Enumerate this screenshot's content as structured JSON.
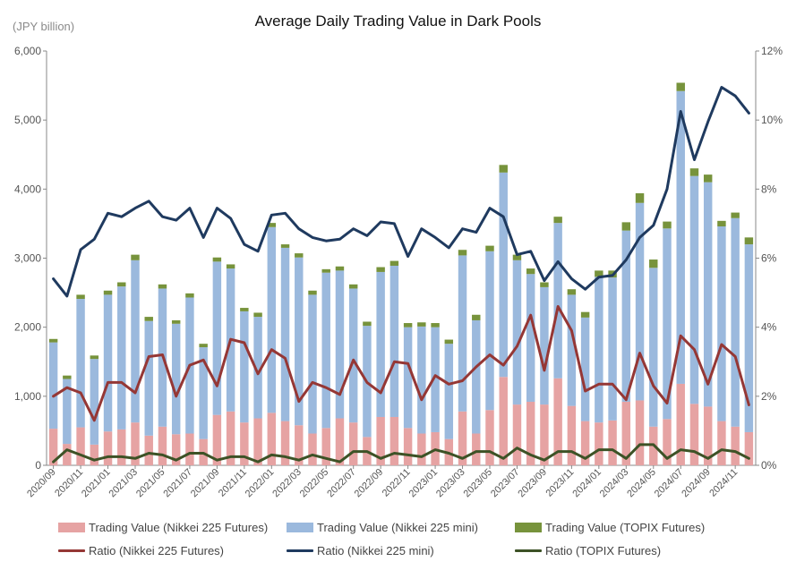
{
  "chart_data": {
    "type": "bar",
    "title": "Average Daily Trading Value in Dark Pools",
    "unit_label": "(JPY billion)",
    "ylim": [
      0,
      6000
    ],
    "y_ticks": [
      "0",
      "1,000",
      "2,000",
      "3,000",
      "4,000",
      "5,000",
      "6,000"
    ],
    "y2lim": [
      0,
      12
    ],
    "y2_ticks": [
      "0%",
      "2%",
      "4%",
      "6%",
      "8%",
      "10%",
      "12%"
    ],
    "stacked": true,
    "categories": [
      "2020/09",
      "2020/10",
      "2020/11",
      "2020/12",
      "2021/01",
      "2021/02",
      "2021/03",
      "2021/04",
      "2021/05",
      "2021/06",
      "2021/07",
      "2021/08",
      "2021/09",
      "2021/10",
      "2021/11",
      "2021/12",
      "2022/01",
      "2022/02",
      "2022/03",
      "2022/04",
      "2022/05",
      "2022/06",
      "2022/07",
      "2022/08",
      "2022/09",
      "2022/10",
      "2022/11",
      "2022/12",
      "2023/01",
      "2023/02",
      "2023/03",
      "2023/04",
      "2023/05",
      "2023/06",
      "2023/07",
      "2023/08",
      "2023/09",
      "2023/10",
      "2023/11",
      "2023/12",
      "2024/01",
      "2024/02",
      "2024/03",
      "2024/04",
      "2024/05",
      "2024/06",
      "2024/07",
      "2024/08",
      "2024/09",
      "2024/10",
      "2024/11",
      "2024/12"
    ],
    "x_tick_labels": [
      "2020/09",
      "2020/11",
      "2021/01",
      "2021/03",
      "2021/05",
      "2021/07",
      "2021/09",
      "2021/11",
      "2022/01",
      "2022/03",
      "2022/05",
      "2022/07",
      "2022/09",
      "2022/11",
      "2023/01",
      "2023/03",
      "2023/05",
      "2023/07",
      "2023/09",
      "2023/11",
      "2024/01",
      "2024/03",
      "2024/05",
      "2024/07",
      "2024/09",
      "2024/11"
    ],
    "series": [
      {
        "name": "Trading Value (Nikkei 225 Futures)",
        "kind": "bar",
        "axis": "left",
        "color": "#e6a3a3",
        "values": [
          530,
          310,
          550,
          300,
          490,
          520,
          620,
          430,
          560,
          450,
          460,
          380,
          730,
          780,
          620,
          680,
          760,
          640,
          580,
          460,
          540,
          680,
          620,
          410,
          700,
          700,
          540,
          460,
          480,
          380,
          780,
          460,
          800,
          1280,
          880,
          920,
          880,
          1260,
          860,
          640,
          620,
          650,
          920,
          940,
          560,
          670,
          1180,
          890,
          850,
          640,
          560,
          480
        ]
      },
      {
        "name": "Trading Value (Nikkei 225 mini)",
        "kind": "bar",
        "axis": "left",
        "color": "#9bb9dd",
        "values": [
          1250,
          940,
          1860,
          1240,
          1980,
          2070,
          2350,
          1660,
          2000,
          1600,
          1970,
          1330,
          2220,
          2070,
          1610,
          1470,
          2690,
          2510,
          2430,
          2010,
          2250,
          2140,
          1940,
          1610,
          2100,
          2190,
          1460,
          1550,
          1520,
          1380,
          2260,
          1640,
          2300,
          2960,
          2090,
          1850,
          1700,
          2250,
          1610,
          1500,
          2110,
          2070,
          2480,
          2860,
          2300,
          2760,
          4240,
          3300,
          3250,
          2820,
          3020,
          2720
        ]
      },
      {
        "name": "Trading Value (TOPIX Futures)",
        "kind": "bar",
        "axis": "left",
        "color": "#77933c",
        "values": [
          50,
          50,
          60,
          50,
          60,
          60,
          80,
          60,
          60,
          50,
          60,
          50,
          60,
          60,
          50,
          60,
          60,
          50,
          60,
          60,
          50,
          60,
          60,
          60,
          70,
          70,
          60,
          60,
          60,
          60,
          80,
          80,
          80,
          110,
          80,
          80,
          70,
          90,
          80,
          80,
          90,
          100,
          120,
          140,
          120,
          100,
          120,
          110,
          110,
          80,
          80,
          100
        ]
      },
      {
        "name": "Ratio (Nikkei 225 Futures)",
        "kind": "line",
        "axis": "right",
        "color": "#953735",
        "values": [
          2.0,
          2.25,
          2.1,
          1.3,
          2.4,
          2.4,
          2.1,
          3.15,
          3.2,
          2.0,
          2.9,
          3.05,
          2.3,
          3.65,
          3.55,
          2.65,
          3.35,
          3.1,
          1.85,
          2.4,
          2.25,
          2.05,
          3.05,
          2.4,
          2.1,
          3.0,
          2.95,
          1.9,
          2.6,
          2.35,
          2.45,
          2.85,
          3.2,
          2.9,
          3.45,
          4.35,
          2.75,
          4.6,
          3.9,
          2.15,
          2.35,
          2.35,
          1.9,
          3.25,
          2.3,
          1.8,
          3.75,
          3.35,
          2.35,
          3.5,
          3.15,
          1.75
        ]
      },
      {
        "name": "Ratio (Nikkei 225 mini)",
        "kind": "line",
        "axis": "right",
        "color": "#1f3a5f",
        "values": [
          5.4,
          4.9,
          6.25,
          6.55,
          7.3,
          7.2,
          7.45,
          7.65,
          7.2,
          7.1,
          7.45,
          6.6,
          7.45,
          7.15,
          6.4,
          6.2,
          7.25,
          7.3,
          6.85,
          6.6,
          6.5,
          6.55,
          6.85,
          6.65,
          7.05,
          7.0,
          6.05,
          6.85,
          6.6,
          6.3,
          6.85,
          6.75,
          7.45,
          7.2,
          6.1,
          6.2,
          5.35,
          5.9,
          5.4,
          5.1,
          5.45,
          5.5,
          5.95,
          6.6,
          6.95,
          8.0,
          10.25,
          8.85,
          9.95,
          10.95,
          10.7,
          10.2
        ]
      },
      {
        "name": "Ratio (TOPIX Futures)",
        "kind": "line",
        "axis": "right",
        "color": "#3d5226",
        "values": [
          0.1,
          0.45,
          0.3,
          0.15,
          0.25,
          0.25,
          0.2,
          0.35,
          0.3,
          0.15,
          0.35,
          0.35,
          0.15,
          0.25,
          0.25,
          0.1,
          0.3,
          0.25,
          0.15,
          0.3,
          0.2,
          0.1,
          0.4,
          0.4,
          0.2,
          0.35,
          0.3,
          0.25,
          0.45,
          0.35,
          0.2,
          0.4,
          0.4,
          0.2,
          0.5,
          0.3,
          0.15,
          0.4,
          0.4,
          0.2,
          0.45,
          0.45,
          0.2,
          0.6,
          0.6,
          0.2,
          0.45,
          0.4,
          0.2,
          0.45,
          0.4,
          0.2
        ]
      }
    ],
    "grid": false,
    "legend_position": "bottom"
  }
}
